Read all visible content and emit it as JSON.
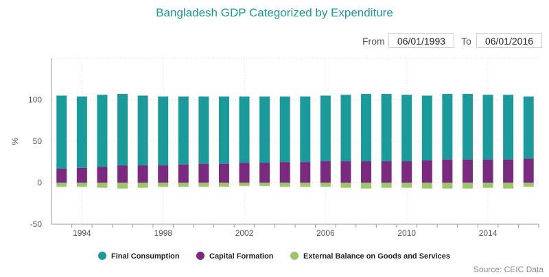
{
  "header": {
    "title": "Bangladesh GDP Categorized by Expenditure",
    "from_label": "From",
    "from_value": "06/01/1993",
    "to_label": "To",
    "to_value": "06/01/2016"
  },
  "source": "Source: CEIC Data",
  "colors": {
    "final_consumption": "#1a9a9a",
    "capital_formation": "#7a2a7e",
    "external_balance": "#9dc66b"
  },
  "chart_data": {
    "type": "bar",
    "stacked": true,
    "x": [
      1993,
      1994,
      1995,
      1996,
      1997,
      1998,
      1999,
      2000,
      2001,
      2002,
      2003,
      2004,
      2005,
      2006,
      2007,
      2008,
      2009,
      2010,
      2011,
      2012,
      2013,
      2014,
      2015,
      2016
    ],
    "x_tick_labels": [
      "1994",
      "1998",
      "2002",
      "2006",
      "2010",
      "2014"
    ],
    "x_tick_values": [
      1994,
      1998,
      2002,
      2006,
      2010,
      2014
    ],
    "ylabel": "%",
    "ylim": [
      -50,
      150
    ],
    "y_ticks": [
      -50,
      0,
      50,
      100
    ],
    "grid": true,
    "legend_position": "bottom",
    "series": [
      {
        "name": "Final Consumption",
        "values": [
          88,
          86,
          87,
          86,
          84,
          83,
          82,
          81,
          81,
          80,
          80,
          79,
          79,
          79,
          80,
          81,
          81,
          80,
          78,
          79,
          79,
          78,
          78,
          75
        ]
      },
      {
        "name": "Capital Formation",
        "values": [
          17,
          18,
          19,
          21,
          21,
          21,
          22,
          23,
          23,
          24,
          24,
          25,
          25,
          26,
          26,
          26,
          26,
          26,
          27,
          28,
          28,
          28,
          28,
          29
        ]
      },
      {
        "name": "External Balance on Goods and Services",
        "values": [
          -5,
          -5,
          -6,
          -7,
          -6,
          -5,
          -5,
          -5,
          -5,
          -4,
          -4,
          -5,
          -5,
          -5,
          -6,
          -7,
          -6,
          -6,
          -7,
          -7,
          -7,
          -6,
          -7,
          -5
        ]
      }
    ]
  }
}
